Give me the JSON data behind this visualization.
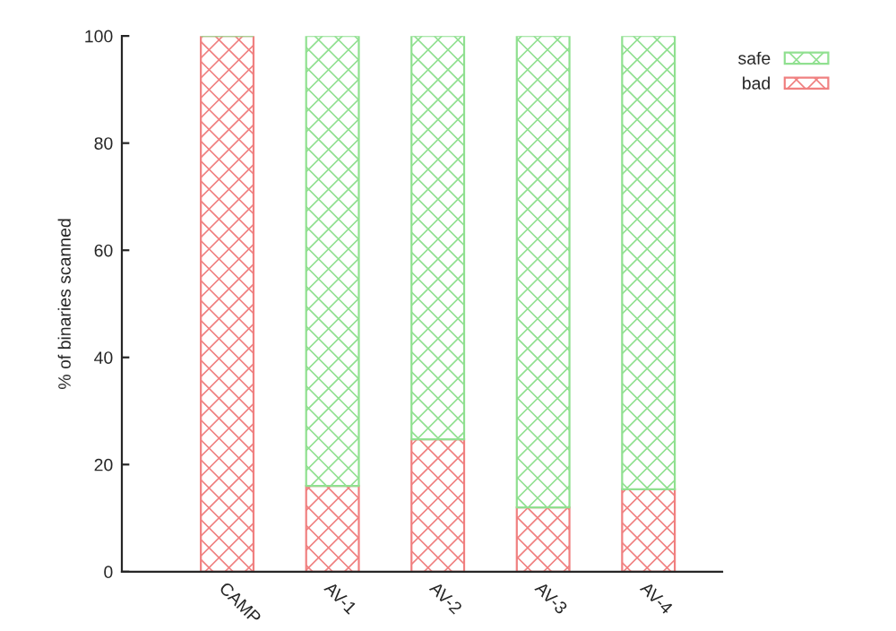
{
  "chart_data": {
    "type": "bar",
    "stacked": true,
    "ylabel": "% of binaries scanned",
    "categories": [
      "CAMP",
      "AV-1",
      "AV-2",
      "AV-3",
      "AV-4"
    ],
    "series": [
      {
        "name": "bad",
        "color": "#f08080",
        "values": [
          100,
          16,
          24.7,
          12,
          15.4
        ]
      },
      {
        "name": "safe",
        "color": "#90e090",
        "values": [
          0,
          84,
          75.3,
          88,
          84.6
        ]
      }
    ],
    "ylim": [
      0,
      100
    ],
    "yticks": [
      0,
      20,
      40,
      60,
      80,
      100
    ],
    "grid": false,
    "legend": "top right"
  }
}
